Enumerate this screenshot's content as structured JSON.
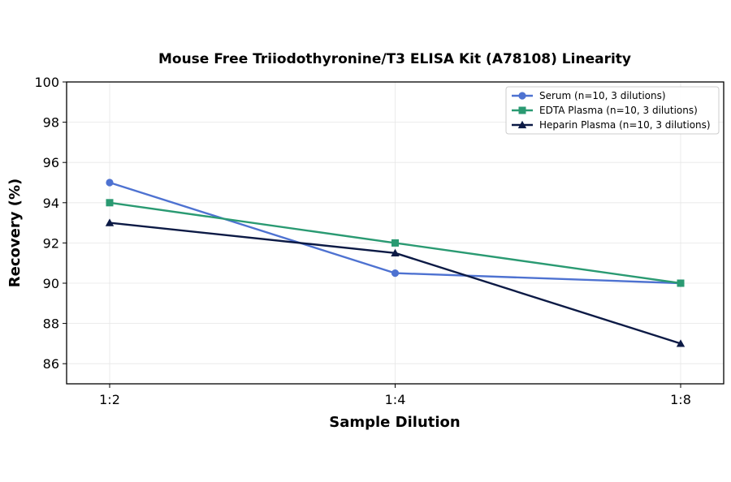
{
  "chart_data": {
    "type": "line",
    "title": "Mouse Free Triiodothyronine/T3 ELISA Kit (A78108) Linearity",
    "xlabel": "Sample Dilution",
    "ylabel": "Recovery (%)",
    "categories": [
      "1:2",
      "1:4",
      "1:8"
    ],
    "ylim": [
      85,
      100
    ],
    "yticks": [
      86,
      88,
      90,
      92,
      94,
      96,
      98,
      100
    ],
    "grid": true,
    "legend_position": "top-right",
    "series": [
      {
        "name": "Serum (n=10, 3 dilutions)",
        "values": [
          95,
          90.5,
          90
        ],
        "color": "#4e72d1",
        "marker": "circle"
      },
      {
        "name": "EDTA Plasma (n=10, 3 dilutions)",
        "values": [
          94,
          92,
          90
        ],
        "color": "#2a9a72",
        "marker": "square"
      },
      {
        "name": "Heparin Plasma (n=10, 3 dilutions)",
        "values": [
          93,
          91.5,
          87
        ],
        "color": "#0c1a45",
        "marker": "triangle"
      }
    ]
  }
}
